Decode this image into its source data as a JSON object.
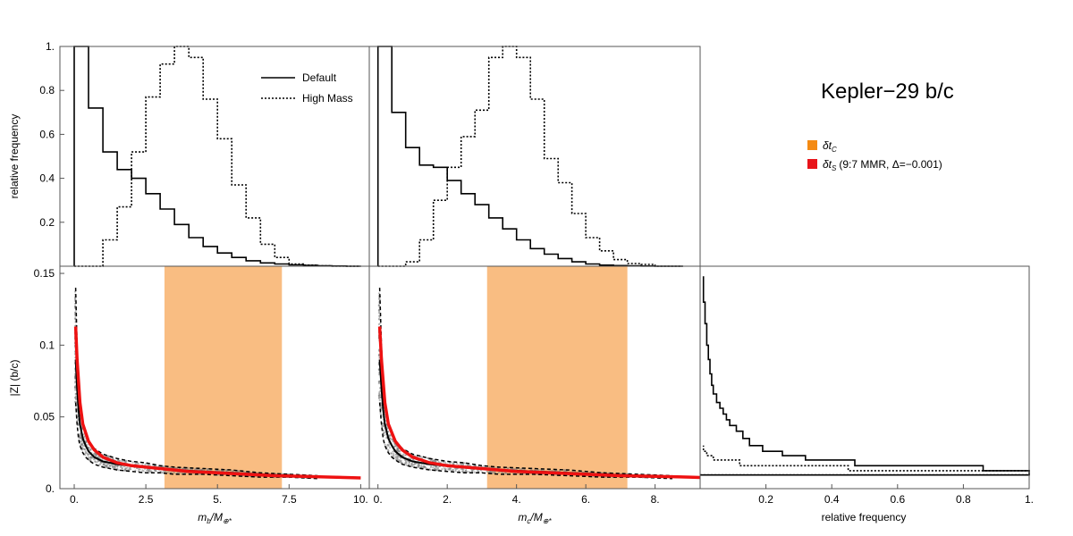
{
  "title": "Kepler−29 b/c",
  "legend_lines": {
    "default_label": "Default",
    "highmass_label": "High Mass"
  },
  "legend_regions": {
    "tc_symbol": "δt",
    "tc_sub": "C",
    "ts_symbol": "δt",
    "ts_sub": "S",
    "ts_note": "(9:7 MMR, Δ=−0.001)"
  },
  "colors": {
    "band": "#f9bd82",
    "tc_swatch": "#f48a13",
    "ts_swatch": "#e8141a",
    "red_line": "#ee1111",
    "scatter": "#7f7f7f"
  },
  "chart_data": [
    {
      "id": "hist_mb",
      "type": "line",
      "ylabel": "relative frequency",
      "xlim": [
        -0.5,
        10.3
      ],
      "ylim": [
        0,
        1.0
      ],
      "yticks": [
        0.2,
        0.4,
        0.6,
        0.8,
        1.0
      ],
      "ytick_labels": [
        "0.2",
        "0.4",
        "0.6",
        "0.8",
        "1."
      ],
      "series": [
        {
          "name": "Default",
          "style": "solid",
          "bin_edges": [
            0,
            0.5,
            1,
            1.5,
            2,
            2.5,
            3,
            3.5,
            4,
            4.5,
            5,
            5.5,
            6,
            6.5,
            7,
            7.5,
            8,
            8.5,
            9,
            9.5,
            10
          ],
          "values": [
            1.0,
            0.72,
            0.52,
            0.44,
            0.4,
            0.33,
            0.26,
            0.19,
            0.13,
            0.09,
            0.06,
            0.04,
            0.025,
            0.015,
            0.01,
            0.006,
            0.004,
            0.002,
            0.001,
            0.0
          ]
        },
        {
          "name": "High Mass",
          "style": "dotted",
          "bin_edges": [
            0,
            0.5,
            1,
            1.5,
            2,
            2.5,
            3,
            3.5,
            4,
            4.5,
            5,
            5.5,
            6,
            6.5,
            7,
            7.5,
            8,
            8.5,
            9,
            9.5,
            10
          ],
          "values": [
            0.0,
            0.0,
            0.12,
            0.27,
            0.52,
            0.77,
            0.92,
            1.0,
            0.95,
            0.76,
            0.58,
            0.37,
            0.22,
            0.1,
            0.04,
            0.01,
            0.005,
            0.002,
            0.001,
            0.0
          ]
        }
      ]
    },
    {
      "id": "hist_mc",
      "type": "line",
      "xlim": [
        -0.25,
        9.3
      ],
      "ylim": [
        0,
        1.0
      ],
      "series": [
        {
          "name": "Default",
          "style": "solid",
          "bin_edges": [
            0,
            0.4,
            0.8,
            1.2,
            1.6,
            2.0,
            2.4,
            2.8,
            3.2,
            3.6,
            4.0,
            4.4,
            4.8,
            5.2,
            5.6,
            6.0,
            6.4,
            6.8,
            7.2,
            7.6,
            8.0,
            8.4,
            8.8
          ],
          "values": [
            1.0,
            0.7,
            0.54,
            0.46,
            0.45,
            0.39,
            0.33,
            0.28,
            0.22,
            0.17,
            0.12,
            0.08,
            0.055,
            0.035,
            0.02,
            0.01,
            0.005,
            0.003,
            0.002,
            0.001,
            0.0,
            0.0
          ]
        },
        {
          "name": "High Mass",
          "style": "dotted",
          "bin_edges": [
            0,
            0.4,
            0.8,
            1.2,
            1.6,
            2.0,
            2.4,
            2.8,
            3.2,
            3.6,
            4.0,
            4.4,
            4.8,
            5.2,
            5.6,
            6.0,
            6.4,
            6.8,
            7.2,
            7.6,
            8.0,
            8.4,
            8.8
          ],
          "values": [
            0.0,
            0.0,
            0.02,
            0.12,
            0.3,
            0.45,
            0.59,
            0.71,
            0.95,
            1.0,
            0.95,
            0.76,
            0.49,
            0.38,
            0.24,
            0.13,
            0.07,
            0.03,
            0.012,
            0.008,
            0.0,
            0.0
          ]
        }
      ]
    },
    {
      "id": "scatter_mb",
      "type": "scatter",
      "xlabel": "m_b/M_⊕*",
      "xlabel_main": "m",
      "xlabel_sub": "b",
      "xlabel_rest": "/M",
      "xlabel_sub2": "⊕*",
      "ylabel": "|Z| (b/c)",
      "xlim": [
        -0.5,
        10.3
      ],
      "ylim": [
        0,
        0.155
      ],
      "xticks": [
        0,
        2.5,
        5,
        7.5,
        10
      ],
      "xtick_labels": [
        "0.",
        "2.5",
        "5.",
        "7.5",
        "10."
      ],
      "yticks": [
        0,
        0.05,
        0.1,
        0.15
      ],
      "ytick_labels": [
        "0.",
        "0.05",
        "0.1",
        "0.15"
      ],
      "shaded_region": {
        "x0": 3.15,
        "x1": 7.25
      },
      "default_median_x": [
        0.05,
        0.1,
        0.15,
        0.2,
        0.3,
        0.4,
        0.5,
        0.7,
        1.0,
        1.5,
        2.0,
        2.5,
        3.0,
        3.5,
        4.5,
        5.5,
        6.5,
        7.5,
        8.5
      ],
      "default_median_y": [
        0.09,
        0.07,
        0.055,
        0.045,
        0.035,
        0.03,
        0.026,
        0.022,
        0.019,
        0.017,
        0.016,
        0.015,
        0.014,
        0.013,
        0.012,
        0.011,
        0.01,
        0.009,
        0.008
      ],
      "upper_dash_y": [
        0.14,
        0.1,
        0.075,
        0.06,
        0.045,
        0.038,
        0.033,
        0.028,
        0.024,
        0.021,
        0.019,
        0.018,
        0.016,
        0.015,
        0.014,
        0.013,
        0.011,
        0.01,
        0.009
      ],
      "lower_dash_y": [
        0.06,
        0.045,
        0.035,
        0.03,
        0.025,
        0.022,
        0.02,
        0.017,
        0.015,
        0.013,
        0.012,
        0.011,
        0.011,
        0.01,
        0.01,
        0.009,
        0.008,
        0.008,
        0.007
      ],
      "red_x": [
        0.05,
        0.1,
        0.2,
        0.3,
        0.5,
        0.7,
        1.0,
        1.5,
        2.0,
        3.0,
        4.0,
        5.0,
        6.0,
        7.0,
        8.0,
        9.0,
        10.0
      ],
      "red_y": [
        0.113,
        0.09,
        0.06,
        0.045,
        0.033,
        0.027,
        0.022,
        0.018,
        0.016,
        0.014,
        0.012,
        0.011,
        0.01,
        0.009,
        0.0085,
        0.008,
        0.0075
      ]
    },
    {
      "id": "scatter_mc",
      "type": "scatter",
      "xlabel": "m_c/M_⊕*",
      "xlabel_main": "m",
      "xlabel_sub": "c",
      "xlabel_rest": "/M",
      "xlabel_sub2": "⊕*",
      "xlim": [
        -0.25,
        9.3
      ],
      "ylim": [
        0,
        0.155
      ],
      "xticks": [
        0,
        2,
        4,
        6,
        8
      ],
      "xtick_labels": [
        "0.",
        "2.",
        "4.",
        "6.",
        "8."
      ],
      "shaded_region": {
        "x0": 3.15,
        "x1": 7.2
      },
      "default_median_x": [
        0.05,
        0.1,
        0.15,
        0.2,
        0.3,
        0.4,
        0.5,
        0.7,
        1.0,
        1.5,
        2.0,
        2.5,
        3.0,
        3.5,
        4.5,
        5.5,
        6.5,
        7.5,
        8.5
      ],
      "default_median_y": [
        0.09,
        0.07,
        0.055,
        0.045,
        0.035,
        0.03,
        0.026,
        0.022,
        0.019,
        0.017,
        0.016,
        0.015,
        0.014,
        0.013,
        0.012,
        0.011,
        0.01,
        0.009,
        0.008
      ],
      "upper_dash_y": [
        0.14,
        0.1,
        0.075,
        0.06,
        0.045,
        0.038,
        0.033,
        0.028,
        0.024,
        0.021,
        0.019,
        0.018,
        0.016,
        0.015,
        0.014,
        0.013,
        0.011,
        0.01,
        0.009
      ],
      "lower_dash_y": [
        0.06,
        0.045,
        0.035,
        0.03,
        0.025,
        0.022,
        0.02,
        0.017,
        0.015,
        0.013,
        0.012,
        0.011,
        0.011,
        0.01,
        0.01,
        0.009,
        0.008,
        0.008,
        0.007
      ],
      "red_x": [
        0.05,
        0.1,
        0.2,
        0.3,
        0.5,
        0.7,
        1.0,
        1.5,
        2.0,
        3.0,
        4.0,
        5.0,
        6.0,
        7.0,
        8.0,
        9.0,
        9.3
      ],
      "red_y": [
        0.113,
        0.09,
        0.06,
        0.045,
        0.033,
        0.027,
        0.022,
        0.018,
        0.016,
        0.014,
        0.012,
        0.011,
        0.01,
        0.009,
        0.0085,
        0.008,
        0.0078
      ]
    },
    {
      "id": "hist_z",
      "type": "line",
      "xlabel": "relative frequency",
      "xlim": [
        0,
        1.0
      ],
      "ylim": [
        0,
        0.155
      ],
      "xticks": [
        0.2,
        0.4,
        0.6,
        0.8,
        1.0
      ],
      "xtick_labels": [
        "0.2",
        "0.4",
        "0.6",
        "0.8",
        "1."
      ],
      "series": [
        {
          "name": "Default",
          "style": "solid",
          "bin_edges_y": [
            0.0095,
            0.0125,
            0.016,
            0.02,
            0.023,
            0.026,
            0.03,
            0.035,
            0.04,
            0.044,
            0.048,
            0.052,
            0.056,
            0.06,
            0.066,
            0.072,
            0.08,
            0.09,
            0.1,
            0.115,
            0.13,
            0.148
          ],
          "values": [
            1.0,
            0.86,
            0.47,
            0.32,
            0.25,
            0.19,
            0.15,
            0.13,
            0.11,
            0.09,
            0.08,
            0.07,
            0.06,
            0.05,
            0.04,
            0.035,
            0.03,
            0.025,
            0.02,
            0.015,
            0.01
          ]
        },
        {
          "name": "High Mass",
          "style": "dotted",
          "bin_edges_y": [
            0.0095,
            0.0125,
            0.016,
            0.02,
            0.023,
            0.026,
            0.03
          ],
          "values": [
            1.0,
            0.45,
            0.12,
            0.04,
            0.02,
            0.01
          ]
        }
      ]
    }
  ]
}
